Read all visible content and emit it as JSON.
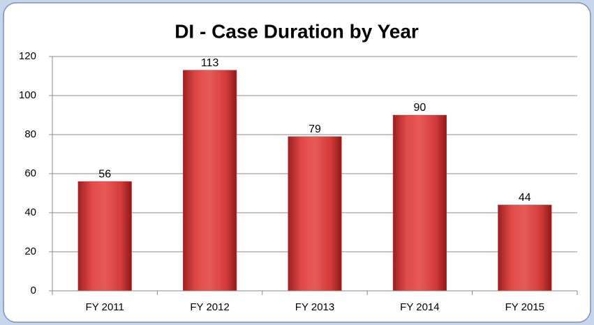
{
  "chart_data": {
    "type": "bar",
    "title": "DI - Case Duration by Year",
    "categories": [
      "FY 2011",
      "FY 2012",
      "FY 2013",
      "FY 2014",
      "FY 2015"
    ],
    "values": [
      56,
      113,
      79,
      90,
      44
    ],
    "color": "#d9403f",
    "ylim": [
      0,
      120
    ],
    "yticks": [
      0,
      20,
      40,
      60,
      80,
      100,
      120
    ],
    "grid": true
  }
}
